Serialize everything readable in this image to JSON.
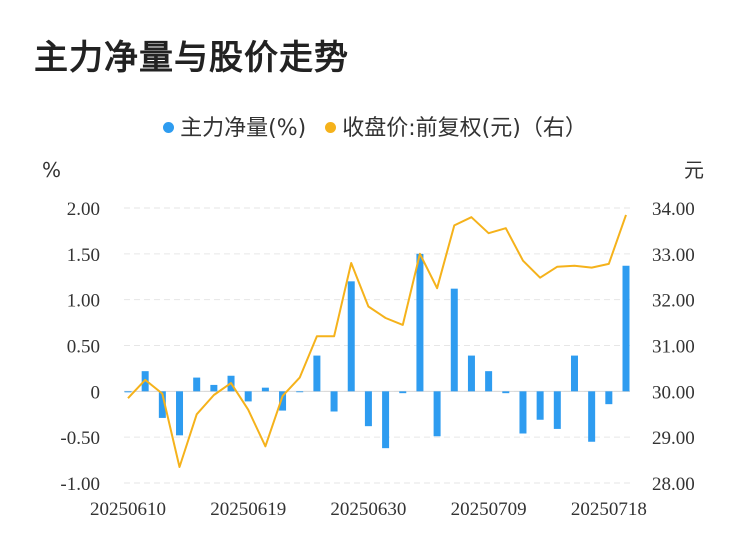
{
  "title": "主力净量与股价走势",
  "chart_data": {
    "type": "bar+line",
    "legend": [
      {
        "name": "主力净量(%)",
        "color": "#2e9cf0"
      },
      {
        "name": "收盘价:前复权(元)（右）",
        "color": "#f5b21b"
      }
    ],
    "left_unit": "%",
    "right_unit": "元",
    "y_left": {
      "ticks": [
        "2.00",
        "1.50",
        "1.00",
        "0.50",
        "0",
        "-0.50",
        "-1.00"
      ],
      "range": [
        -1.0,
        2.0
      ]
    },
    "y_right": {
      "ticks": [
        "34.00",
        "33.00",
        "32.00",
        "31.00",
        "30.00",
        "29.00",
        "28.00"
      ],
      "range": [
        28.0,
        34.0
      ]
    },
    "x_tick_labels": [
      "20250610",
      "20250619",
      "20250630",
      "20250709",
      "20250718"
    ],
    "x_tick_indices": [
      0,
      7,
      14,
      21,
      28
    ],
    "dates": [
      "20250610",
      "20250611",
      "20250612",
      "20250613",
      "20250616",
      "20250617",
      "20250618",
      "20250619",
      "20250620",
      "20250623",
      "20250624",
      "20250625",
      "20250626",
      "20250627",
      "20250630",
      "20250701",
      "20250702",
      "20250703",
      "20250704",
      "20250707",
      "20250708",
      "20250709",
      "20250710",
      "20250711",
      "20250714",
      "20250715",
      "20250716",
      "20250717",
      "20250718",
      "20250721"
    ],
    "series": [
      {
        "name": "主力净量(%)",
        "kind": "bar",
        "axis": "left",
        "values": [
          0.0,
          0.22,
          -0.29,
          -0.48,
          0.15,
          0.07,
          0.17,
          -0.11,
          0.04,
          -0.21,
          -0.01,
          0.39,
          -0.22,
          1.2,
          -0.38,
          -0.62,
          -0.02,
          1.5,
          -0.49,
          1.12,
          0.39,
          0.22,
          -0.02,
          -0.46,
          -0.31,
          -0.41,
          0.39,
          -0.55,
          -0.14,
          1.37
        ]
      },
      {
        "name": "收盘价:前复权(元)（右）",
        "kind": "line",
        "axis": "right",
        "values": [
          29.85,
          30.25,
          29.95,
          28.35,
          29.5,
          29.92,
          30.18,
          29.6,
          28.8,
          29.9,
          30.3,
          31.2,
          31.2,
          32.8,
          31.85,
          31.6,
          31.45,
          33.0,
          32.25,
          33.62,
          33.8,
          33.45,
          33.56,
          32.85,
          32.48,
          32.72,
          32.74,
          32.7,
          32.78,
          33.85
        ]
      }
    ]
  }
}
